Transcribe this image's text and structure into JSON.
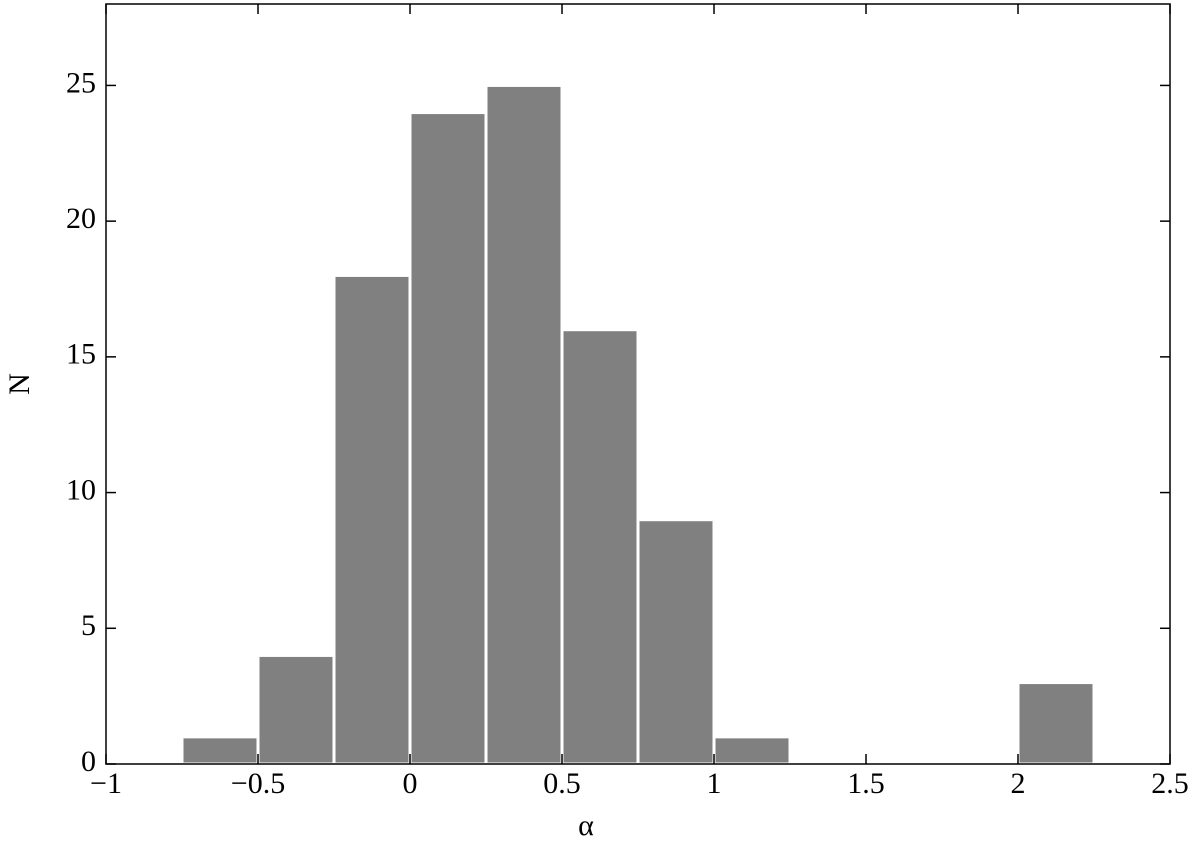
{
  "chart_data": {
    "type": "histogram",
    "x_label": "α",
    "y_label": "N",
    "bins": [
      -0.75,
      -0.5,
      -0.25,
      0,
      0.25,
      0.5,
      0.75,
      1,
      1.25,
      1.5,
      1.75,
      2,
      2.25
    ],
    "values": [
      1,
      4,
      18,
      24,
      25,
      16,
      9,
      1,
      0,
      0,
      0,
      3
    ],
    "color": "#808080",
    "xlim": [
      -1,
      2.5
    ],
    "xticks": [
      {
        "value": -1,
        "label": "−1"
      },
      {
        "value": -0.5,
        "label": "−0.5"
      },
      0,
      0.5,
      1,
      1.5,
      2,
      2.5
    ],
    "ylim": [
      0,
      28
    ],
    "yticks": [
      0,
      5,
      10,
      15,
      20,
      25
    ],
    "grid": false
  }
}
